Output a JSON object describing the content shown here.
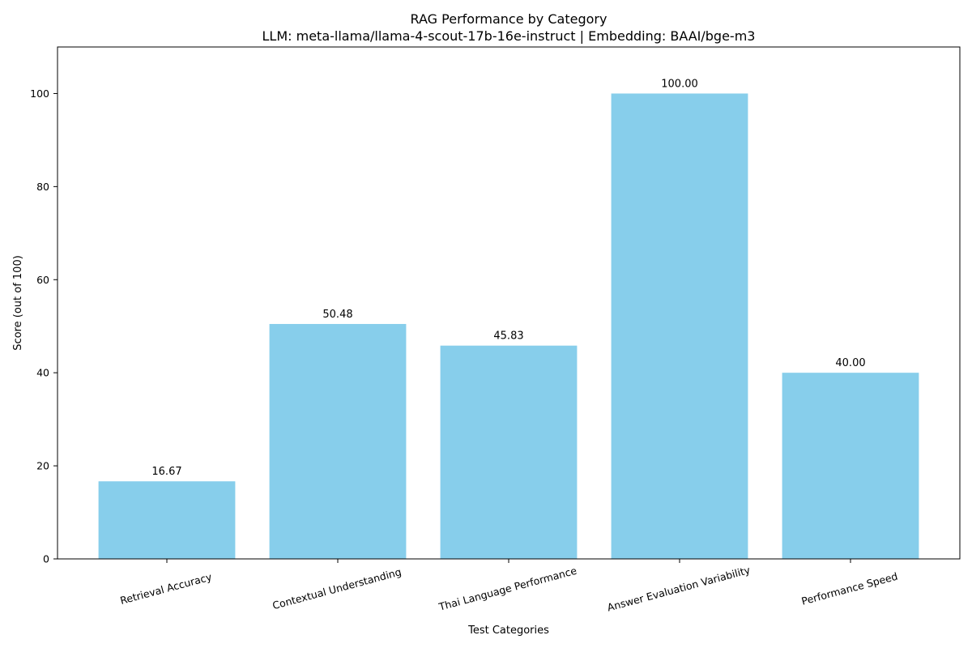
{
  "chart_data": {
    "type": "bar",
    "title": "RAG Performance by Category",
    "subtitle": "LLM: meta-llama/llama-4-scout-17b-16e-instruct | Embedding: BAAI/bge-m3",
    "xlabel": "Test Categories",
    "ylabel": "Score (out of 100)",
    "categories": [
      "Retrieval Accuracy",
      "Contextual Understanding",
      "Thai Language Performance",
      "Answer Evaluation Variability",
      "Performance Speed"
    ],
    "values": [
      16.67,
      50.48,
      45.83,
      100.0,
      40.0
    ],
    "value_labels": [
      "16.67",
      "50.48",
      "45.83",
      "100.00",
      "40.00"
    ],
    "ylim": [
      0,
      110
    ],
    "yticks": [
      0,
      20,
      40,
      60,
      80,
      100
    ],
    "ytick_labels": [
      "0",
      "20",
      "40",
      "60",
      "80",
      "100"
    ],
    "bar_color": "#87ceeb",
    "grid": false,
    "legend": "none"
  }
}
